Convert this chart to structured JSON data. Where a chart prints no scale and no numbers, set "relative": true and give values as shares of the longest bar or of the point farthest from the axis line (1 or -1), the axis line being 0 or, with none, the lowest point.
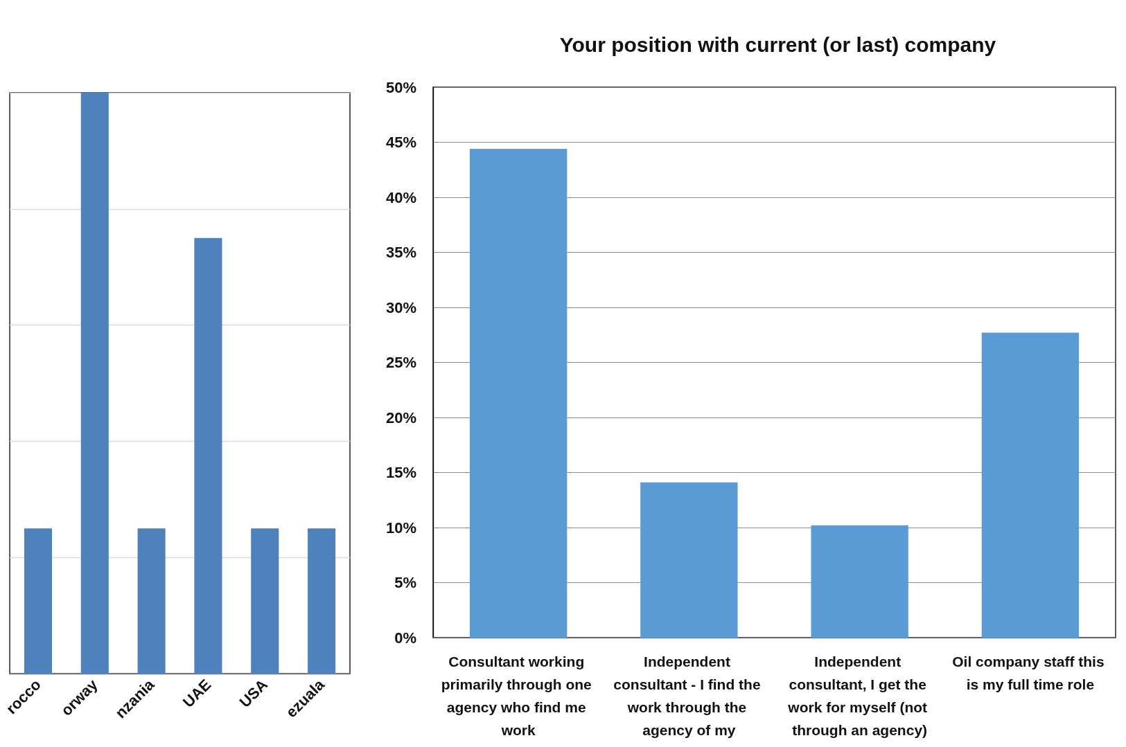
{
  "chart_data": [
    {
      "type": "bar",
      "relative": true,
      "categories": [
        "rocco",
        "orway",
        "nzania",
        "UAE",
        "USA",
        "ezuala"
      ],
      "values": [
        0.25,
        1,
        0.25,
        0.75,
        0.25,
        0.25
      ],
      "color": "#4f81bd",
      "grid": "y"
    },
    {
      "type": "bar",
      "title": "Your position with current (or last) company",
      "categories": [
        "Consultant working primarily through one agency who find me work",
        "Independent consultant - I find the work through the agency of my",
        "Independent consultant, I get the work for myself (not through an agency)",
        "Oil company staff this is my full time role"
      ],
      "values": [
        44.4,
        14.1,
        10.2,
        27.7
      ],
      "color": "#5b9bd5",
      "ylim": [
        0,
        50
      ],
      "yticks": [
        {
          "value": 0,
          "label": "0%"
        },
        {
          "value": 5,
          "label": "5%"
        },
        {
          "value": 10,
          "label": "10%"
        },
        {
          "value": 15,
          "label": "15%"
        },
        {
          "value": 20,
          "label": "20%"
        },
        {
          "value": 25,
          "label": "25%"
        },
        {
          "value": 30,
          "label": "30%"
        },
        {
          "value": 35,
          "label": "35%"
        },
        {
          "value": 40,
          "label": "40%"
        },
        {
          "value": 45,
          "label": "45%"
        },
        {
          "value": 50,
          "label": "50%"
        }
      ],
      "grid": "y"
    }
  ]
}
